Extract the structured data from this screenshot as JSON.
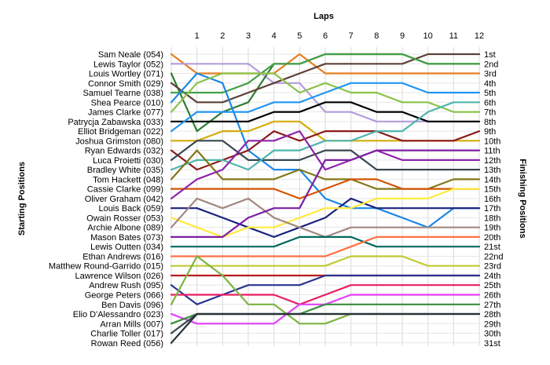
{
  "chart_data": {
    "type": "line",
    "title": "Laps",
    "ylabel_left": "Starting Positions",
    "ylabel_right": "Finishing Positions",
    "laps": [
      1,
      2,
      3,
      4,
      5,
      6,
      7,
      8,
      9,
      10,
      11,
      12
    ],
    "positions": [
      "1st",
      "2nd",
      "3rd",
      "4th",
      "5th",
      "6th",
      "7th",
      "8th",
      "9th",
      "10th",
      "11th",
      "12th",
      "13th",
      "14th",
      "15th",
      "16th",
      "17th",
      "18th",
      "19th",
      "20th",
      "21st",
      "22nd",
      "23rd",
      "24th",
      "25th",
      "26th",
      "27th",
      "28th",
      "29th",
      "30th",
      "31st"
    ],
    "drivers": [
      "Sam Neale (054)",
      "Lewis Taylor (052)",
      "Louis Wortley (071)",
      "Connor Smith (029)",
      "Samuel Tearne (038)",
      "Shea Pearce (010)",
      "James Clarke (077)",
      "Patrycja Zabawska (033)",
      "Elliot Bridgeman (022)",
      "Joshua Grimston (080)",
      "Ryan Edwards (032)",
      "Luca Proietti (030)",
      "Bradley White (035)",
      "Tom Hackett (048)",
      "Cassie Clarke (099)",
      "Oliver Graham (042)",
      "Louis Back (059)",
      "Owain Rosser (053)",
      "Archie Albone (089)",
      "Mason Bates (073)",
      "Lewis Outten (034)",
      "Ethan Andrews (016)",
      "Matthew Round-Garrido (015)",
      "Lawrence Wilson (026)",
      "Andrew Rush (095)",
      "George Peters (066)",
      "Ben Davis (096)",
      "Elio D'Alessandro (023)",
      "Arran Mills (007)",
      "Charlie Toller (017)",
      "Rowan Reed (056)"
    ],
    "series": [
      {
        "color": "#e67e22",
        "positions": [
          1,
          3,
          3,
          3,
          3,
          1,
          3,
          3,
          3,
          3,
          3,
          3,
          3
        ]
      },
      {
        "color": "#b39ddb",
        "positions": [
          2,
          2,
          2,
          2,
          4,
          4,
          7,
          7,
          8,
          8,
          8,
          8,
          8
        ]
      },
      {
        "color": "#2e7d32",
        "positions": [
          3,
          9,
          7,
          6,
          2,
          2,
          1,
          1,
          1,
          1,
          2,
          2,
          2
        ]
      },
      {
        "color": "#5d4037",
        "positions": [
          4,
          6,
          6,
          5,
          4,
          3,
          2,
          2,
          2,
          2,
          1,
          1,
          1
        ]
      },
      {
        "color": "#43a047",
        "positions": [
          5,
          5,
          5,
          4,
          2,
          2,
          1,
          1,
          1,
          1,
          2,
          2,
          2
        ]
      },
      {
        "color": "#1e88e5",
        "positions": [
          6,
          3,
          4,
          11,
          13,
          13,
          16,
          17,
          17,
          18,
          19,
          17,
          17
        ]
      },
      {
        "color": "#8bc34a",
        "positions": [
          7,
          4,
          3,
          3,
          3,
          5,
          4,
          5,
          5,
          6,
          6,
          7,
          7
        ]
      },
      {
        "color": "#000000",
        "positions": [
          8,
          8,
          8,
          8,
          7,
          7,
          6,
          6,
          7,
          7,
          8,
          8,
          8
        ]
      },
      {
        "color": "#2196f3",
        "positions": [
          9,
          7,
          7,
          7,
          6,
          6,
          5,
          4,
          4,
          4,
          5,
          5,
          5
        ]
      },
      {
        "color": "#d4ac0d",
        "positions": [
          10,
          10,
          9,
          9,
          8,
          8,
          10,
          10,
          10,
          10,
          10,
          10,
          10
        ]
      },
      {
        "color": "#8b1a1a",
        "positions": [
          11,
          13,
          12,
          11,
          9,
          10,
          9,
          9,
          9,
          10,
          10,
          10,
          9
        ]
      },
      {
        "color": "#37474f",
        "positions": [
          12,
          10,
          10,
          12,
          12,
          12,
          11,
          11,
          13,
          13,
          13,
          13,
          13
        ]
      },
      {
        "color": "#4db6ac",
        "positions": [
          13,
          12,
          12,
          13,
          11,
          11,
          10,
          10,
          9,
          9,
          7,
          6,
          6
        ]
      },
      {
        "color": "#827717",
        "positions": [
          14,
          11,
          14,
          14,
          14,
          13,
          14,
          14,
          15,
          15,
          15,
          14,
          14
        ]
      },
      {
        "color": "#d35400",
        "positions": [
          15,
          15,
          15,
          15,
          15,
          16,
          15,
          14,
          14,
          15,
          15,
          15,
          15
        ]
      },
      {
        "color": "#8e24aa",
        "positions": [
          16,
          14,
          13,
          10,
          10,
          9,
          13,
          12,
          11,
          12,
          12,
          12,
          12
        ]
      },
      {
        "color": "#1a237e",
        "positions": [
          17,
          17,
          18,
          19,
          20,
          19,
          18,
          16,
          17,
          17,
          17,
          17,
          17
        ]
      },
      {
        "color": "#ffeb3b",
        "positions": [
          18,
          19,
          20,
          19,
          19,
          18,
          17,
          17,
          16,
          16,
          16,
          15,
          15
        ]
      },
      {
        "color": "#a1887f",
        "positions": [
          19,
          16,
          17,
          16,
          18,
          19,
          20,
          19,
          19,
          19,
          19,
          19,
          19
        ]
      },
      {
        "color": "#7b1fa2",
        "positions": [
          20,
          20,
          20,
          18,
          17,
          17,
          12,
          12,
          11,
          11,
          11,
          11,
          11
        ]
      },
      {
        "color": "#00695c",
        "positions": [
          21,
          21,
          21,
          21,
          21,
          20,
          20,
          20,
          21,
          21,
          21,
          21,
          21
        ]
      },
      {
        "color": "#ff7043",
        "positions": [
          22,
          22,
          22,
          22,
          22,
          22,
          22,
          21,
          20,
          20,
          20,
          20,
          20
        ]
      },
      {
        "color": "#c0ca33",
        "positions": [
          23,
          23,
          23,
          23,
          23,
          23,
          23,
          22,
          22,
          22,
          23,
          23,
          23
        ]
      },
      {
        "color": "#b71c1c",
        "positions": [
          24,
          24,
          24,
          24,
          24,
          24,
          24,
          24,
          24,
          24,
          24,
          24,
          24
        ]
      },
      {
        "color": "#283593",
        "positions": [
          25,
          27,
          26,
          25,
          25,
          25,
          24,
          24,
          24,
          24,
          24,
          24,
          24
        ]
      },
      {
        "color": "#e91e63",
        "positions": [
          26,
          26,
          26,
          26,
          26,
          27,
          26,
          25,
          25,
          25,
          25,
          25,
          25
        ]
      },
      {
        "color": "#7cb342",
        "positions": [
          27,
          22,
          24,
          27,
          27,
          29,
          29,
          28,
          28,
          28,
          28,
          null,
          null
        ]
      },
      {
        "color": "#e040fb",
        "positions": [
          28,
          29,
          29,
          29,
          29,
          27,
          27,
          26,
          26,
          26,
          26,
          26,
          26
        ]
      },
      {
        "color": "#388e3c",
        "positions": [
          29,
          28,
          28,
          28,
          28,
          28,
          27,
          27,
          27,
          27,
          27,
          27,
          27
        ]
      },
      {
        "color": "#37474f",
        "positions": [
          30,
          28,
          28,
          28,
          28,
          28,
          28,
          28,
          28,
          28,
          28,
          28,
          28
        ]
      },
      {
        "color": "#263238",
        "positions": [
          31,
          28,
          28,
          28,
          28,
          28,
          28,
          28,
          28,
          28,
          28,
          28,
          28
        ]
      }
    ]
  }
}
